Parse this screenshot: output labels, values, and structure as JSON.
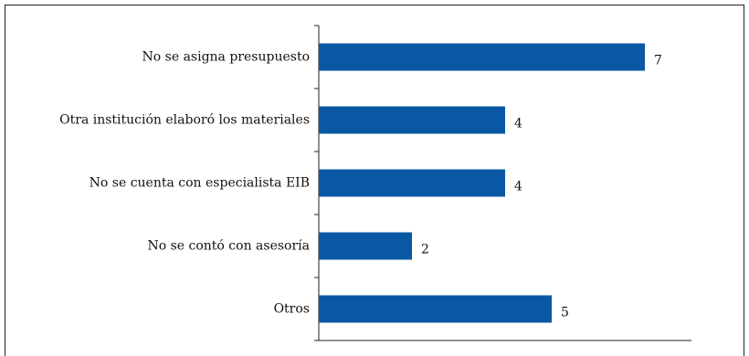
{
  "chart_data": {
    "type": "bar",
    "orientation": "horizontal",
    "title": "",
    "xlabel": "",
    "ylabel": "",
    "categories": [
      "No se asigna presupuesto",
      "Otra institución elaboró los materiales",
      "No se cuenta con especialista EIB",
      "No se contó con asesoría",
      "Otros"
    ],
    "values": [
      7,
      4,
      4,
      2,
      5
    ],
    "xlim": [
      0,
      8
    ],
    "grid": false,
    "legend": "none",
    "bar_color": "#0a58a4"
  }
}
